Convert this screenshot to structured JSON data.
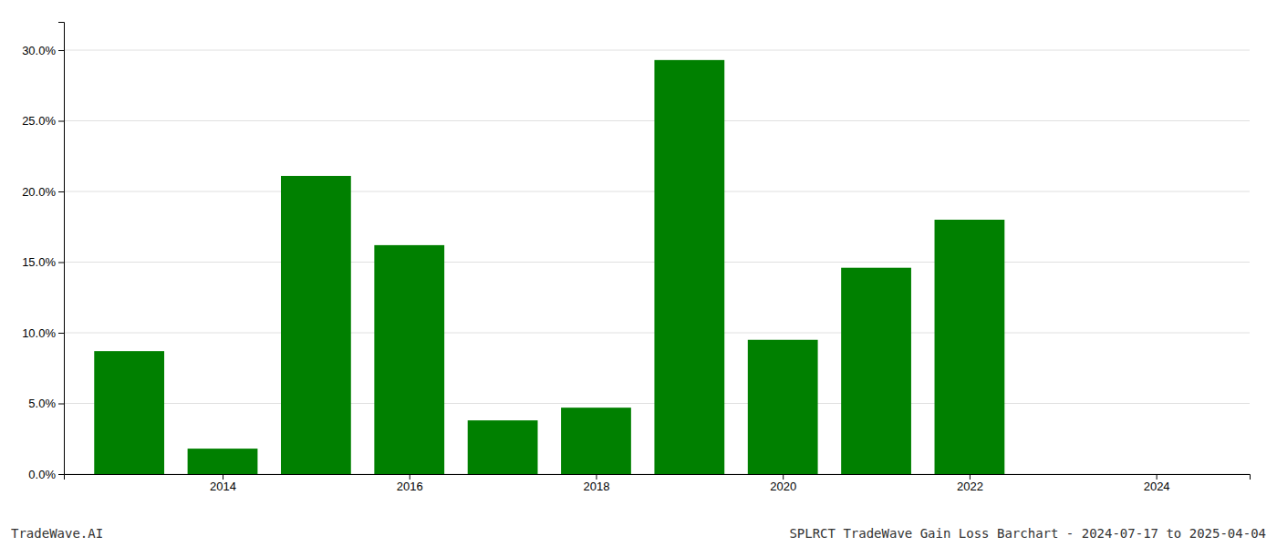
{
  "chart_data": {
    "type": "bar",
    "x": [
      2013,
      2014,
      2015,
      2016,
      2017,
      2018,
      2019,
      2020,
      2021,
      2022,
      2023
    ],
    "values": [
      0.087,
      0.018,
      0.211,
      0.162,
      0.038,
      0.047,
      0.293,
      0.095,
      0.146,
      0.18,
      0.0
    ],
    "color": "#008000",
    "xlim": [
      2012.3,
      2025.0
    ],
    "xticks": [
      2014,
      2016,
      2018,
      2020,
      2022,
      2024
    ],
    "ylim": [
      0,
      0.32
    ],
    "yticks": [
      {
        "value": 0.0,
        "label": "0.0%"
      },
      {
        "value": 0.05,
        "label": "5.0%"
      },
      {
        "value": 0.1,
        "label": "10.0%"
      },
      {
        "value": 0.15,
        "label": "15.0%"
      },
      {
        "value": 0.2,
        "label": "20.0%"
      },
      {
        "value": 0.25,
        "label": "25.0%"
      },
      {
        "value": 0.3,
        "label": "30.0%"
      }
    ],
    "grid": true,
    "annotations": [
      "TradeWave.AI",
      "SPLRCT TradeWave Gain Loss Barchart - 2024-07-17 to 2025-04-04"
    ]
  }
}
